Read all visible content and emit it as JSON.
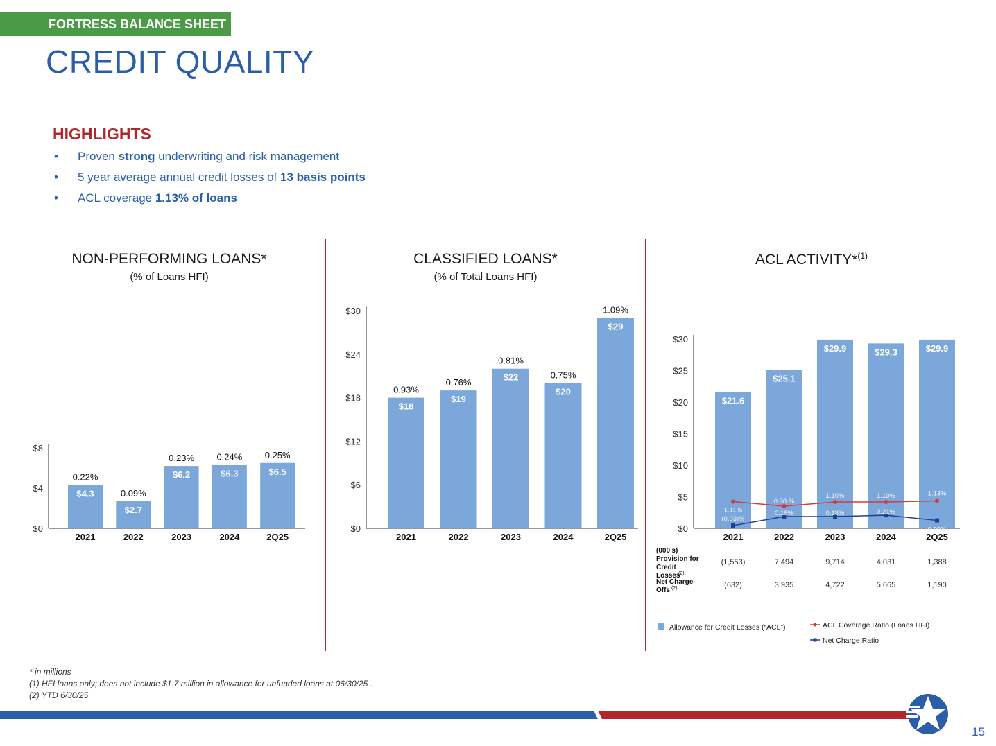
{
  "header": {
    "section_tag": "FORTRESS BALANCE SHEET",
    "title": "CREDIT QUALITY"
  },
  "highlights": {
    "heading": "HIGHLIGHTS",
    "items": [
      {
        "pre": "Proven ",
        "bold": "strong",
        "post": " underwriting and risk management"
      },
      {
        "pre": "5 year average annual credit losses of ",
        "bold": "13 basis points",
        "post": ""
      },
      {
        "pre": "ACL coverage ",
        "bold": "1.13% of loans",
        "post": ""
      }
    ]
  },
  "colors": {
    "bar": "#7ba7da",
    "accent_blue": "#2a5ea8",
    "accent_red": "#b3262d",
    "green": "#4a9a47",
    "line_red": "#d63a3a",
    "line_navy": "#1f3f99"
  },
  "chart_data": [
    {
      "type": "bar",
      "title": "NON-PERFORMING LOANS*",
      "subtitle": "(% of Loans HFI)",
      "categories": [
        "2021",
        "2022",
        "2023",
        "2024",
        "2Q25"
      ],
      "values": [
        4.3,
        2.7,
        6.2,
        6.3,
        6.5
      ],
      "value_labels": [
        "$4.3",
        "$2.7",
        "$6.2",
        "$6.3",
        "$6.5"
      ],
      "pct_labels": [
        "0.22%",
        "0.09%",
        "0.23%",
        "0.24%",
        "0.25%"
      ],
      "ylim": [
        0,
        8
      ],
      "yticks": [
        0,
        4,
        8
      ],
      "ytick_labels": [
        "$0",
        "$4",
        "$8"
      ]
    },
    {
      "type": "bar",
      "title": "CLASSIFIED LOANS*",
      "subtitle": "(% of Total Loans HFI)",
      "categories": [
        "2021",
        "2022",
        "2023",
        "2024",
        "2Q25"
      ],
      "values": [
        18,
        19,
        22,
        20,
        29
      ],
      "value_labels": [
        "$18",
        "$19",
        "$22",
        "$20",
        "$29"
      ],
      "pct_labels": [
        "0.93%",
        "0.76%",
        "0.81%",
        "0.75%",
        "1.09%"
      ],
      "ylim": [
        0,
        30
      ],
      "yticks": [
        0,
        6,
        12,
        18,
        24,
        30
      ],
      "ytick_labels": [
        "$0",
        "$6",
        "$12",
        "$18",
        "$24",
        "$30"
      ]
    },
    {
      "type": "bar",
      "title": "ACL ACTIVITY*",
      "title_sup": "(1)",
      "categories": [
        "2021",
        "2022",
        "2023",
        "2024",
        "2Q25"
      ],
      "values": [
        21.6,
        25.1,
        29.9,
        29.3,
        29.9
      ],
      "value_labels": [
        "$21.6",
        "$25.1",
        "$29.9",
        "$29.3",
        "$29.9"
      ],
      "ylim": [
        0,
        30
      ],
      "yticks": [
        0,
        5,
        10,
        15,
        20,
        25,
        30
      ],
      "ytick_labels": [
        "$0",
        "$5",
        "$10",
        "$15",
        "$20",
        "$25",
        "$30"
      ],
      "lines": [
        {
          "name": "ACL Coverage Ratio (Loans HFI)",
          "values": [
            1.11,
            0.98,
            1.1,
            1.1,
            1.13
          ],
          "labels": [
            "1.11%",
            "0.98 %",
            "1.10%",
            "1.10%",
            "1.13%"
          ]
        },
        {
          "name": "Net Charge Ratio",
          "values": [
            -0.03,
            0.18,
            0.18,
            0.21,
            0.09
          ],
          "labels": [
            "(0.03)%",
            "0.18%",
            "0.18%",
            "0.21%",
            "0.09%"
          ]
        }
      ],
      "bar_legend": "Allowance for Credit Losses (“ACL”)",
      "table": {
        "unit": "(000’s)",
        "rows": [
          {
            "label": "Provision for Credit Losses",
            "sup": "(2)",
            "values": [
              "(1,553)",
              "7,494",
              "9,714",
              "4,031",
              "1,388"
            ]
          },
          {
            "label": "Net Charge-Offs",
            "sup": "(2)",
            "values": [
              "(632)",
              "3,935",
              "4,722",
              "5,665",
              "1,190"
            ]
          }
        ]
      }
    }
  ],
  "footnotes": [
    "* in millions",
    "(1) HFI loans only; does not include $1.7 million in allowance for unfunded loans at 06/30/25 .",
    "(2) YTD 6/30/25"
  ],
  "page_number": "15"
}
